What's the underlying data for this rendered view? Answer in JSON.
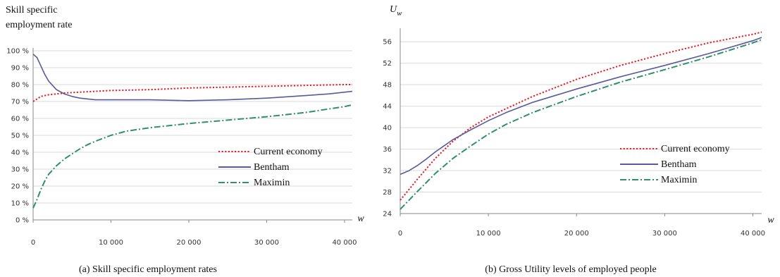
{
  "chart_data": [
    {
      "type": "line",
      "ylabel_lines": [
        "Skill specific",
        "employment rate"
      ],
      "xlabel": "w",
      "caption": "(a) Skill specific employment rates",
      "xlim": [
        0,
        41000
      ],
      "ylim": [
        0,
        100
      ],
      "xticks": [
        0,
        10000,
        20000,
        30000,
        40000
      ],
      "xtick_labels": [
        "0",
        "10 000",
        "20 000",
        "30 000",
        "40 000"
      ],
      "yticks": [
        0,
        10,
        20,
        30,
        40,
        50,
        60,
        70,
        80,
        90,
        100
      ],
      "ytick_labels": [
        "0 %",
        "10 %",
        "20 %",
        "30 %",
        "40 %",
        "50 %",
        "60 %",
        "70 %",
        "80 %",
        "90 %",
        "100 %"
      ],
      "grid": "horizontal",
      "legend_position": "right",
      "series": [
        {
          "name": "Current economy",
          "color": "#e0202a",
          "style": "dotted",
          "x": [
            0,
            1000,
            2000,
            4000,
            6000,
            8000,
            10000,
            15000,
            20000,
            25000,
            30000,
            35000,
            40000,
            41000
          ],
          "y": [
            70,
            73,
            74,
            75,
            75.5,
            76,
            76.5,
            77,
            78,
            78.5,
            79,
            79.5,
            80,
            80
          ]
        },
        {
          "name": "Bentham",
          "color": "#5a5a9a",
          "style": "solid",
          "x": [
            0,
            500,
            1000,
            1500,
            2000,
            3000,
            4000,
            5000,
            6000,
            7000,
            8000,
            10000,
            15000,
            20000,
            25000,
            30000,
            35000,
            38000,
            41000
          ],
          "y": [
            98,
            96,
            91,
            86,
            82,
            77,
            74.5,
            73,
            72,
            71.5,
            71,
            71,
            71,
            70.5,
            71,
            72,
            73.5,
            74.5,
            76
          ]
        },
        {
          "name": "Maximin",
          "color": "#2f8f6f",
          "style": "dashdot",
          "x": [
            0,
            500,
            1000,
            1500,
            2000,
            3000,
            4000,
            5000,
            6000,
            7000,
            8000,
            10000,
            12000,
            15000,
            20000,
            25000,
            30000,
            35000,
            40000,
            41000
          ],
          "y": [
            7,
            12,
            18,
            23,
            27,
            32,
            36,
            39,
            42,
            44.5,
            46.5,
            50,
            52.5,
            54.5,
            57,
            59,
            61,
            63.5,
            67,
            68
          ]
        }
      ]
    },
    {
      "type": "line",
      "ylabel": "U",
      "ylabel_sub": "w",
      "xlabel": "w",
      "caption": "(b) Gross Utility levels of employed people",
      "xlim": [
        0,
        41000
      ],
      "ylim": [
        24,
        58
      ],
      "xticks": [
        0,
        10000,
        20000,
        30000,
        40000
      ],
      "xtick_labels": [
        "0",
        "10 000",
        "20 000",
        "30 000",
        "40 000"
      ],
      "yticks": [
        24,
        28,
        32,
        36,
        40,
        44,
        48,
        52,
        56
      ],
      "ytick_labels": [
        "24",
        "28",
        "32",
        "36",
        "40",
        "44",
        "48",
        "52",
        "56"
      ],
      "grid": "horizontal",
      "legend_position": "right",
      "series": [
        {
          "name": "Current economy",
          "color": "#e0202a",
          "style": "dotted",
          "x": [
            0,
            2000,
            4000,
            6000,
            8000,
            10000,
            15000,
            20000,
            25000,
            30000,
            35000,
            40000,
            41000
          ],
          "y": [
            26.5,
            30.5,
            34.3,
            37.5,
            40,
            42,
            45.8,
            49,
            51.6,
            53.8,
            55.8,
            57.4,
            57.8
          ]
        },
        {
          "name": "Bentham",
          "color": "#5a5a9a",
          "style": "solid",
          "x": [
            0,
            1000,
            2000,
            3000,
            4000,
            6000,
            8000,
            10000,
            12000,
            15000,
            20000,
            25000,
            30000,
            35000,
            40000,
            41000
          ],
          "y": [
            31.3,
            32,
            33,
            34.2,
            35.5,
            37.8,
            39.6,
            41.3,
            42.8,
            44.7,
            47.2,
            49.5,
            51.6,
            53.8,
            56.2,
            56.8
          ]
        },
        {
          "name": "Maximin",
          "color": "#2f8f6f",
          "style": "dashdot",
          "x": [
            0,
            2000,
            4000,
            6000,
            8000,
            10000,
            12000,
            15000,
            20000,
            25000,
            30000,
            35000,
            40000,
            41000
          ],
          "y": [
            24.8,
            28.2,
            31.5,
            34.3,
            36.6,
            38.8,
            40.6,
            42.8,
            45.8,
            48.5,
            50.8,
            53.2,
            55.8,
            56.4
          ]
        }
      ]
    }
  ]
}
